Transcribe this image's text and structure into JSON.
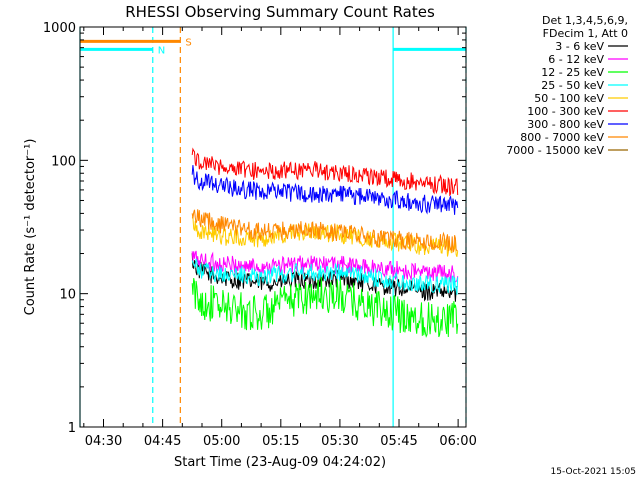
{
  "chart_data": {
    "type": "line",
    "title": "RHESSI Observing Summary Count Rates",
    "xlabel": "Start Time (23-Aug-09 04:24:02)",
    "ylabel": "Count Rate (s⁻¹ detector⁻¹)",
    "x_start": "04:24:02",
    "x_end": "06:02:00",
    "xticks": [
      "04:30",
      "04:45",
      "05:00",
      "05:15",
      "05:30",
      "05:45",
      "06:00"
    ],
    "yscale": "log",
    "ylim": [
      1,
      1000
    ],
    "yticks": [
      "1",
      "10",
      "100",
      "1000"
    ],
    "legend_header": [
      "Det 1,3,4,5,6,9,",
      "FDecim 1, Att 0"
    ],
    "legend_position": "top-right, outside plot",
    "footer_date": "15-Oct-2021 15:05",
    "series": [
      {
        "name": "3 - 6 keV",
        "color": "#000000",
        "points": [
          [
            "04:52:30",
            18
          ],
          [
            "04:54",
            15
          ],
          [
            "05:00",
            13
          ],
          [
            "05:10",
            12
          ],
          [
            "05:20",
            12.5
          ],
          [
            "05:30",
            13
          ],
          [
            "05:40",
            11.5
          ],
          [
            "05:50",
            10.5
          ],
          [
            "06:00",
            10
          ]
        ]
      },
      {
        "name": "6 - 12 keV",
        "color": "#ff00ff",
        "points": [
          [
            "04:52:30",
            19
          ],
          [
            "04:54",
            18
          ],
          [
            "05:00",
            16.5
          ],
          [
            "05:10",
            16
          ],
          [
            "05:20",
            16.5
          ],
          [
            "05:30",
            16.5
          ],
          [
            "05:40",
            15.5
          ],
          [
            "05:50",
            14.5
          ],
          [
            "06:00",
            14
          ]
        ]
      },
      {
        "name": "12 - 25 keV",
        "color": "#00ff00",
        "points": [
          [
            "04:52:30",
            10.5
          ],
          [
            "04:54",
            9
          ],
          [
            "05:00",
            8
          ],
          [
            "05:10",
            7
          ],
          [
            "05:20",
            9.5
          ],
          [
            "05:25",
            10
          ],
          [
            "05:30",
            9.5
          ],
          [
            "05:40",
            7.5
          ],
          [
            "05:50",
            6.5
          ],
          [
            "06:00",
            6.5
          ]
        ]
      },
      {
        "name": "25 - 50 keV",
        "color": "#00ffff",
        "points": [
          [
            "04:52:30",
            17
          ],
          [
            "04:54",
            15
          ],
          [
            "05:00",
            14
          ],
          [
            "05:10",
            13.5
          ],
          [
            "05:20",
            14.5
          ],
          [
            "05:30",
            14.5
          ],
          [
            "05:40",
            13
          ],
          [
            "05:50",
            12
          ],
          [
            "06:00",
            11.5
          ]
        ]
      },
      {
        "name": "50 - 100 keV",
        "color": "#ffcc00",
        "points": [
          [
            "04:52:30",
            36
          ],
          [
            "04:54",
            30
          ],
          [
            "05:00",
            27
          ],
          [
            "05:10",
            26
          ],
          [
            "05:20",
            29
          ],
          [
            "05:30",
            28
          ],
          [
            "05:40",
            25
          ],
          [
            "05:50",
            23
          ],
          [
            "06:00",
            22
          ]
        ]
      },
      {
        "name": "100 - 300 keV",
        "color": "#ff0000",
        "points": [
          [
            "04:52:30",
            110
          ],
          [
            "04:54",
            100
          ],
          [
            "05:00",
            90
          ],
          [
            "05:10",
            82
          ],
          [
            "05:20",
            85
          ],
          [
            "05:25",
            84
          ],
          [
            "05:30",
            80
          ],
          [
            "05:40",
            75
          ],
          [
            "05:50",
            68
          ],
          [
            "06:00",
            63
          ]
        ]
      },
      {
        "name": "300 - 800 keV",
        "color": "#0000ff",
        "points": [
          [
            "04:52:30",
            80
          ],
          [
            "04:54",
            72
          ],
          [
            "05:00",
            64
          ],
          [
            "05:10",
            58
          ],
          [
            "05:20",
            57
          ],
          [
            "05:30",
            55
          ],
          [
            "05:40",
            52
          ],
          [
            "05:50",
            48
          ],
          [
            "06:00",
            45
          ]
        ]
      },
      {
        "name": "800 - 7000 keV",
        "color": "#ff8800",
        "points": [
          [
            "04:52:30",
            42
          ],
          [
            "04:54",
            37
          ],
          [
            "05:00",
            33
          ],
          [
            "05:10",
            29
          ],
          [
            "05:20",
            30
          ],
          [
            "05:30",
            29
          ],
          [
            "05:40",
            26
          ],
          [
            "05:50",
            24.5
          ],
          [
            "06:00",
            24
          ]
        ]
      },
      {
        "name": "7000 - 15000 keV",
        "color": "#996600",
        "points": []
      }
    ],
    "flags": [
      {
        "label": "N",
        "color": "#00ffff",
        "level": 680,
        "intervals": [
          [
            "04:24:02",
            "04:42:30"
          ],
          [
            "05:43:30",
            "06:02:00"
          ]
        ]
      },
      {
        "label": "S",
        "color": "#ff8800",
        "level": 780,
        "intervals": [
          [
            "04:24:02",
            "04:49:30"
          ]
        ]
      }
    ],
    "vlines": [
      {
        "time": "04:24:02",
        "color": "#00ffff",
        "style": "solid"
      },
      {
        "time": "04:42:30",
        "color": "#00ffff",
        "style": "dashed"
      },
      {
        "time": "04:49:30",
        "color": "#ff8800",
        "style": "dashed"
      },
      {
        "time": "05:43:30",
        "color": "#00ffff",
        "style": "solid"
      },
      {
        "time": "06:02:00",
        "color": "#00ffff",
        "style": "dashed"
      }
    ]
  }
}
